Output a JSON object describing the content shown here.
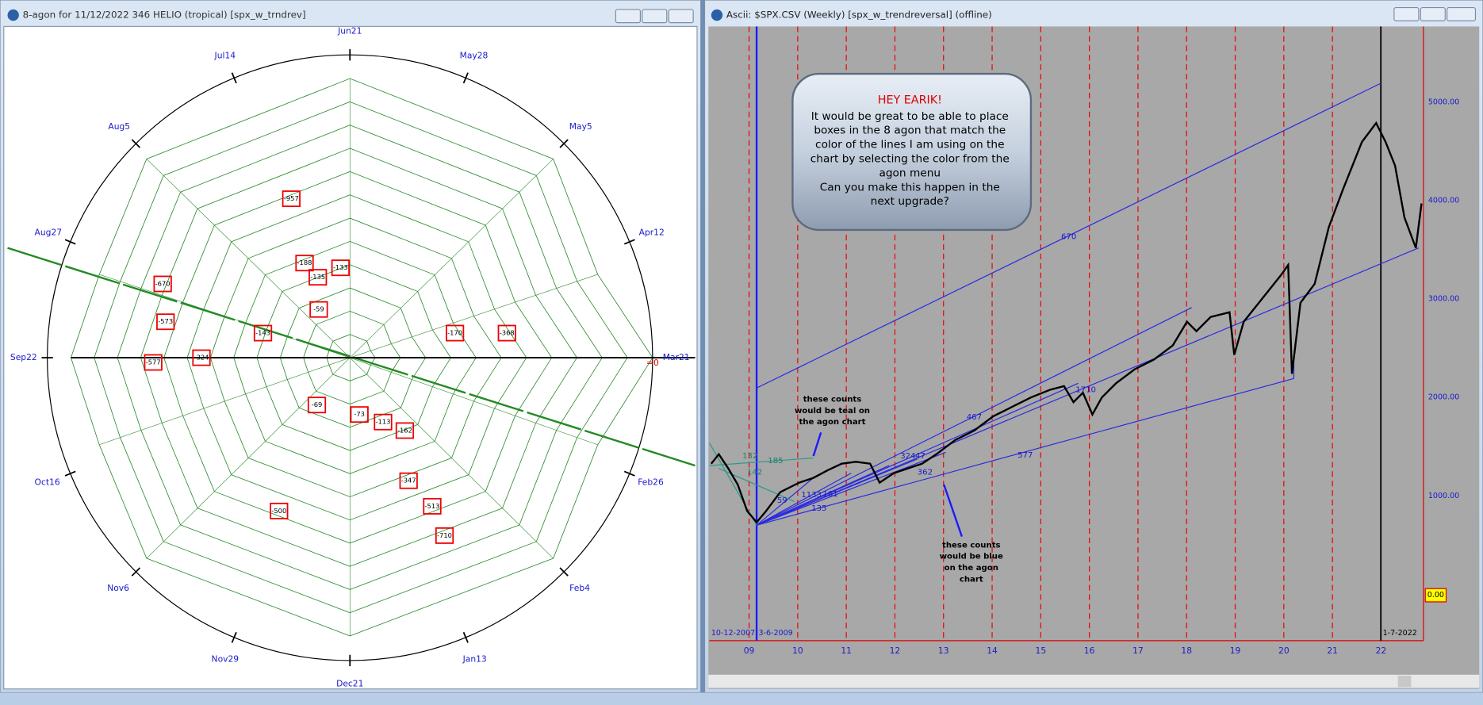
{
  "left_window": {
    "title": "8-agon for  11/12/2022 346 HELIO (tropical) [spx_w_trndrev]",
    "date_labels": [
      "Jun21",
      "May28",
      "May5",
      "Apr12",
      "Mar21",
      "Feb26",
      "Feb4",
      "Jan13",
      "Dec21",
      "Nov29",
      "Nov6",
      "Oct16",
      "Sep22",
      "Aug27",
      "Aug5",
      "Jul14"
    ],
    "zero_label": "=0",
    "boxed_counts": [
      -957,
      -188,
      -133,
      -135,
      -670,
      -59,
      -573,
      -143,
      -170,
      -368,
      -577,
      -324,
      -69,
      -73,
      -113,
      -162,
      -347,
      -513,
      -500,
      -710
    ]
  },
  "right_window": {
    "title": "Ascii: $SPX.CSV (Weekly) [spx_w_trendreversal] (offline)",
    "note": {
      "heading": "HEY EARIK!",
      "lines": [
        "It would be great to be able to place",
        "boxes in the 8 agon that match the",
        "color of the lines I am using on the",
        "chart by selecting the color from the",
        "agon menu",
        "Can you make this happen in the",
        "next upgrade?"
      ]
    },
    "annotation_teal": [
      "these counts",
      "would be teal on",
      "the agon chart"
    ],
    "annotation_blue": [
      "these counts",
      "would be blue",
      "on the agon",
      "chart"
    ],
    "price_labels": [
      "5000.00",
      "4000.00",
      "3000.00",
      "2000.00",
      "1000.00"
    ],
    "year_labels": [
      "09",
      "10",
      "11",
      "12",
      "13",
      "14",
      "15",
      "16",
      "17",
      "18",
      "19",
      "20",
      "21",
      "22"
    ],
    "line_labels": [
      "670",
      "577",
      "1710",
      "467",
      "362",
      "324",
      "47",
      "132",
      "185",
      "142",
      "59",
      "1133",
      "161",
      "135"
    ],
    "start_dates": [
      "10-12-2007",
      "3-6-2009"
    ],
    "end_date": "1-7-2022",
    "cursor_value": "0.00"
  }
}
